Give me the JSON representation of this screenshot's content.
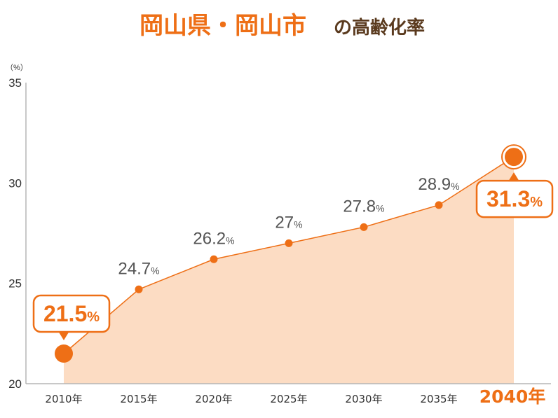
{
  "chart_data": {
    "type": "area",
    "title_main": "岡山県・岡山市",
    "title_sub": "の高齢化率",
    "unit_label": "（%）",
    "categories": [
      "2010年",
      "2015年",
      "2020年",
      "2025年",
      "2030年",
      "2035年",
      "2040年"
    ],
    "series": [
      {
        "values": [
          21.5,
          24.7,
          26.2,
          27,
          27.8,
          28.9,
          31.3
        ]
      }
    ],
    "value_labels": [
      "21.5",
      "24.7",
      "26.2",
      "27",
      "27.8",
      "28.9",
      "31.3"
    ],
    "percent_sign": "%",
    "highlighted_indices": [
      0,
      6
    ],
    "y_ticks": [
      "20",
      "25",
      "30",
      "35"
    ],
    "ylim": [
      20,
      35
    ],
    "grid": false,
    "colors": {
      "line": "#ee6f16",
      "fill": "#fcdcc3",
      "accent": "#ee6f16",
      "title_sub": "#5a3a1e"
    }
  }
}
